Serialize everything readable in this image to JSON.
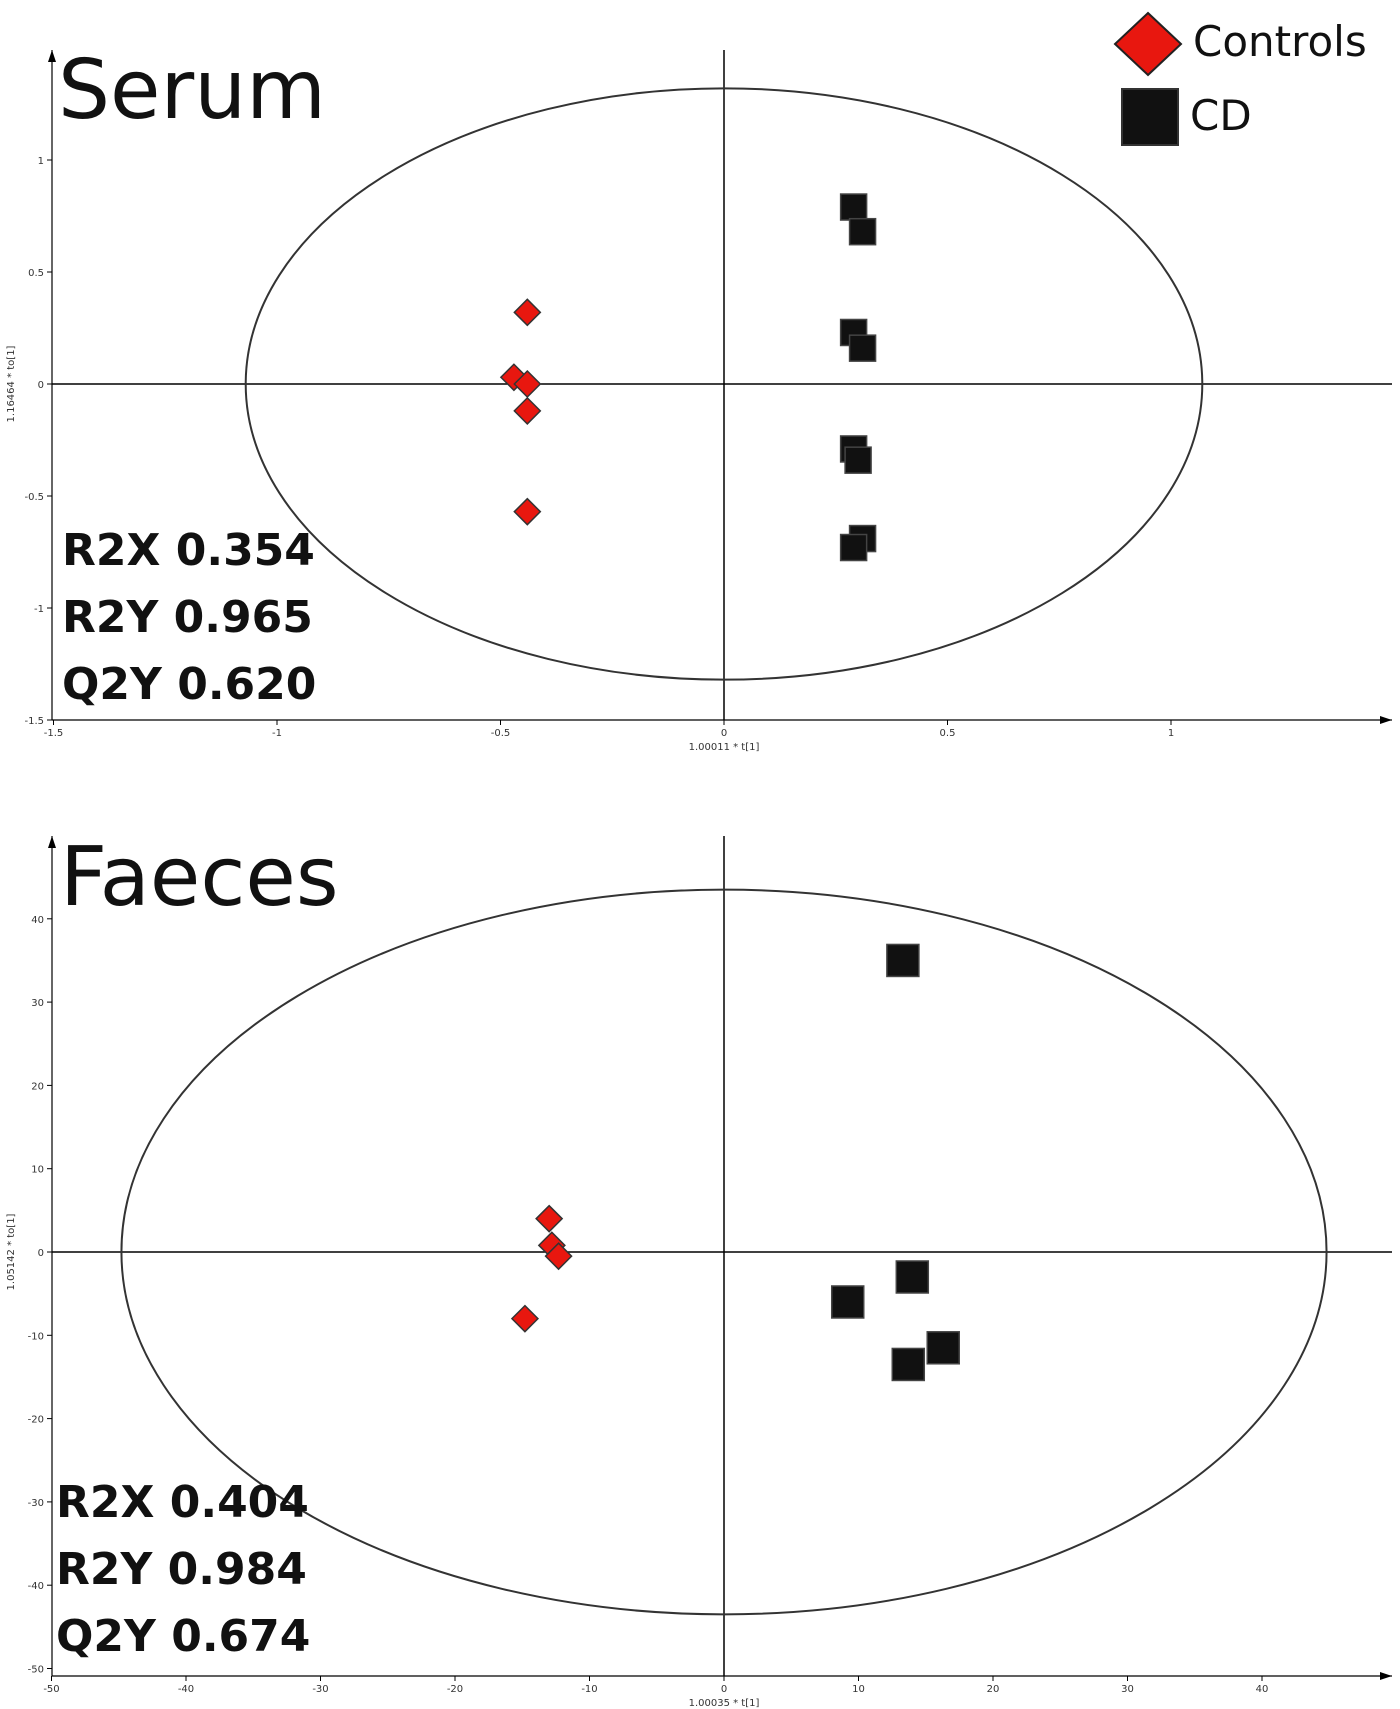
{
  "legend": {
    "entries": [
      {
        "label": "Controls",
        "marker": "diamond",
        "color": "#e8170f"
      },
      {
        "label": "CD",
        "marker": "square",
        "color": "#111111"
      }
    ]
  },
  "chart_data": [
    {
      "type": "scatter",
      "title": "Serum",
      "xlabel": "1.00011 * t[1]",
      "ylabel": "1.16464 * to[1]",
      "xlim": [
        -1.5,
        1.5
      ],
      "ylim": [
        -1.5,
        1.5
      ],
      "xticks": [
        -1.5,
        -1,
        -0.5,
        0,
        0.5,
        1
      ],
      "yticks": [
        -1.5,
        -1,
        -0.5,
        0,
        0.5,
        1
      ],
      "xtick_labels": [
        "-1.5",
        "-1",
        "-0.5",
        "0",
        "0.5",
        "1"
      ],
      "ytick_labels": [
        "-1.5",
        "-1",
        "-0.5",
        "0",
        "0.5",
        "1"
      ],
      "ellipse": {
        "rx": 1.07,
        "ry": 1.32
      },
      "stats": [
        "R2X 0.354",
        "R2Y 0.965",
        "Q2Y 0.620"
      ],
      "series": [
        {
          "name": "Controls",
          "marker": "diamond",
          "color": "#e8170f",
          "points": [
            [
              -0.44,
              0.32
            ],
            [
              -0.47,
              0.03
            ],
            [
              -0.44,
              0.0
            ],
            [
              -0.44,
              -0.12
            ],
            [
              -0.44,
              -0.57
            ]
          ]
        },
        {
          "name": "CD",
          "marker": "square",
          "color": "#111111",
          "points": [
            [
              0.29,
              0.79
            ],
            [
              0.31,
              0.68
            ],
            [
              0.29,
              0.23
            ],
            [
              0.31,
              0.16
            ],
            [
              0.29,
              -0.29
            ],
            [
              0.3,
              -0.34
            ],
            [
              0.31,
              -0.69
            ],
            [
              0.29,
              -0.73
            ]
          ]
        }
      ]
    },
    {
      "type": "scatter",
      "title": "Faeces",
      "xlabel": "1.00035 * t[1]",
      "ylabel": "1.05142 * to[1]",
      "xlim": [
        -50,
        50
      ],
      "ylim": [
        -50,
        50
      ],
      "xticks": [
        -50,
        -40,
        -30,
        -20,
        -10,
        0,
        10,
        20,
        30,
        40
      ],
      "yticks": [
        -50,
        -40,
        -30,
        -20,
        -10,
        0,
        10,
        20,
        30,
        40
      ],
      "xtick_labels": [
        "-50",
        "-40",
        "-30",
        "-20",
        "-10",
        "0",
        "10",
        "20",
        "30",
        "40"
      ],
      "ytick_labels": [
        "-50",
        "-40",
        "-30",
        "-20",
        "-10",
        "0",
        "10",
        "20",
        "30",
        "40"
      ],
      "ellipse": {
        "rx": 44.8,
        "ry": 43.5
      },
      "stats": [
        "R2X 0.404",
        "R2Y 0.984",
        "Q2Y 0.674"
      ],
      "series": [
        {
          "name": "Controls",
          "marker": "diamond",
          "color": "#e8170f",
          "points": [
            [
              -13.0,
              4.0
            ],
            [
              -12.8,
              0.8
            ],
            [
              -12.3,
              -0.5
            ],
            [
              -14.8,
              -8.0
            ]
          ]
        },
        {
          "name": "CD",
          "marker": "square",
          "color": "#111111",
          "points": [
            [
              13.3,
              35.0
            ],
            [
              14.0,
              -3.0
            ],
            [
              9.2,
              -6.0
            ],
            [
              16.3,
              -11.5
            ],
            [
              13.7,
              -13.5
            ]
          ]
        }
      ]
    }
  ]
}
